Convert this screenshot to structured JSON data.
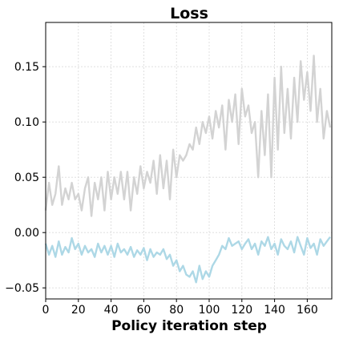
{
  "chart_data": {
    "type": "line",
    "title": "Loss",
    "xlabel": "Policy iteration step",
    "ylabel": "",
    "xlim": [
      0,
      175
    ],
    "ylim": [
      -0.06,
      0.19
    ],
    "xticks": [
      0,
      20,
      40,
      60,
      80,
      100,
      120,
      140,
      160
    ],
    "yticks": [
      -0.05,
      0.0,
      0.05,
      0.1,
      0.15
    ],
    "xtick_labels": [
      "0",
      "20",
      "40",
      "60",
      "80",
      "100",
      "120",
      "140",
      "160"
    ],
    "ytick_labels": [
      "−0.05",
      "0.00",
      "0.05",
      "0.10",
      "0.15"
    ],
    "grid": true,
    "series": [
      {
        "color": "#d3d3d3",
        "x": [
          0,
          2,
          4,
          6,
          8,
          10,
          12,
          14,
          16,
          18,
          20,
          22,
          24,
          26,
          28,
          30,
          32,
          34,
          36,
          38,
          40,
          42,
          44,
          46,
          48,
          50,
          52,
          54,
          56,
          58,
          60,
          62,
          64,
          66,
          68,
          70,
          72,
          74,
          76,
          78,
          80,
          82,
          84,
          86,
          88,
          90,
          92,
          94,
          96,
          98,
          100,
          102,
          104,
          106,
          108,
          110,
          112,
          114,
          116,
          118,
          120,
          122,
          124,
          126,
          128,
          130,
          132,
          134,
          136,
          138,
          140,
          142,
          144,
          146,
          148,
          150,
          152,
          154,
          156,
          158,
          160,
          162,
          164,
          166,
          168,
          170,
          172,
          174
        ],
        "values": [
          0.02,
          0.045,
          0.025,
          0.035,
          0.06,
          0.025,
          0.04,
          0.03,
          0.045,
          0.03,
          0.035,
          0.02,
          0.04,
          0.05,
          0.015,
          0.045,
          0.03,
          0.05,
          0.02,
          0.055,
          0.03,
          0.05,
          0.035,
          0.055,
          0.03,
          0.055,
          0.02,
          0.05,
          0.035,
          0.06,
          0.04,
          0.055,
          0.045,
          0.065,
          0.035,
          0.07,
          0.04,
          0.065,
          0.03,
          0.075,
          0.05,
          0.07,
          0.065,
          0.07,
          0.08,
          0.075,
          0.095,
          0.08,
          0.1,
          0.09,
          0.105,
          0.085,
          0.11,
          0.095,
          0.115,
          0.075,
          0.12,
          0.1,
          0.125,
          0.08,
          0.13,
          0.105,
          0.115,
          0.09,
          0.1,
          0.05,
          0.11,
          0.07,
          0.125,
          0.05,
          0.14,
          0.075,
          0.15,
          0.09,
          0.13,
          0.085,
          0.14,
          0.1,
          0.155,
          0.12,
          0.145,
          0.11,
          0.16,
          0.1,
          0.13,
          0.085,
          0.11,
          0.095
        ]
      },
      {
        "color": "#add8e6",
        "x": [
          0,
          2,
          4,
          6,
          8,
          10,
          12,
          14,
          16,
          18,
          20,
          22,
          24,
          26,
          28,
          30,
          32,
          34,
          36,
          38,
          40,
          42,
          44,
          46,
          48,
          50,
          52,
          54,
          56,
          58,
          60,
          62,
          64,
          66,
          68,
          70,
          72,
          74,
          76,
          78,
          80,
          82,
          84,
          86,
          88,
          90,
          92,
          94,
          96,
          98,
          100,
          102,
          104,
          106,
          108,
          110,
          112,
          114,
          116,
          118,
          120,
          122,
          124,
          126,
          128,
          130,
          132,
          134,
          136,
          138,
          140,
          142,
          144,
          146,
          148,
          150,
          152,
          154,
          156,
          158,
          160,
          162,
          164,
          166,
          168,
          170,
          172,
          174
        ],
        "values": [
          -0.01,
          -0.02,
          -0.012,
          -0.022,
          -0.008,
          -0.02,
          -0.013,
          -0.018,
          -0.005,
          -0.015,
          -0.01,
          -0.02,
          -0.012,
          -0.018,
          -0.015,
          -0.022,
          -0.01,
          -0.018,
          -0.012,
          -0.02,
          -0.012,
          -0.022,
          -0.01,
          -0.018,
          -0.015,
          -0.02,
          -0.013,
          -0.022,
          -0.016,
          -0.02,
          -0.014,
          -0.025,
          -0.015,
          -0.022,
          -0.018,
          -0.02,
          -0.015,
          -0.024,
          -0.02,
          -0.03,
          -0.025,
          -0.035,
          -0.03,
          -0.038,
          -0.04,
          -0.035,
          -0.045,
          -0.03,
          -0.042,
          -0.035,
          -0.04,
          -0.03,
          -0.025,
          -0.02,
          -0.012,
          -0.015,
          -0.005,
          -0.012,
          -0.01,
          -0.008,
          -0.015,
          -0.01,
          -0.006,
          -0.015,
          -0.01,
          -0.02,
          -0.008,
          -0.012,
          -0.004,
          -0.015,
          -0.01,
          -0.02,
          -0.006,
          -0.012,
          -0.015,
          -0.008,
          -0.018,
          -0.004,
          -0.012,
          -0.02,
          -0.005,
          -0.014,
          -0.01,
          -0.02,
          -0.006,
          -0.012,
          -0.008,
          -0.004
        ]
      }
    ]
  }
}
